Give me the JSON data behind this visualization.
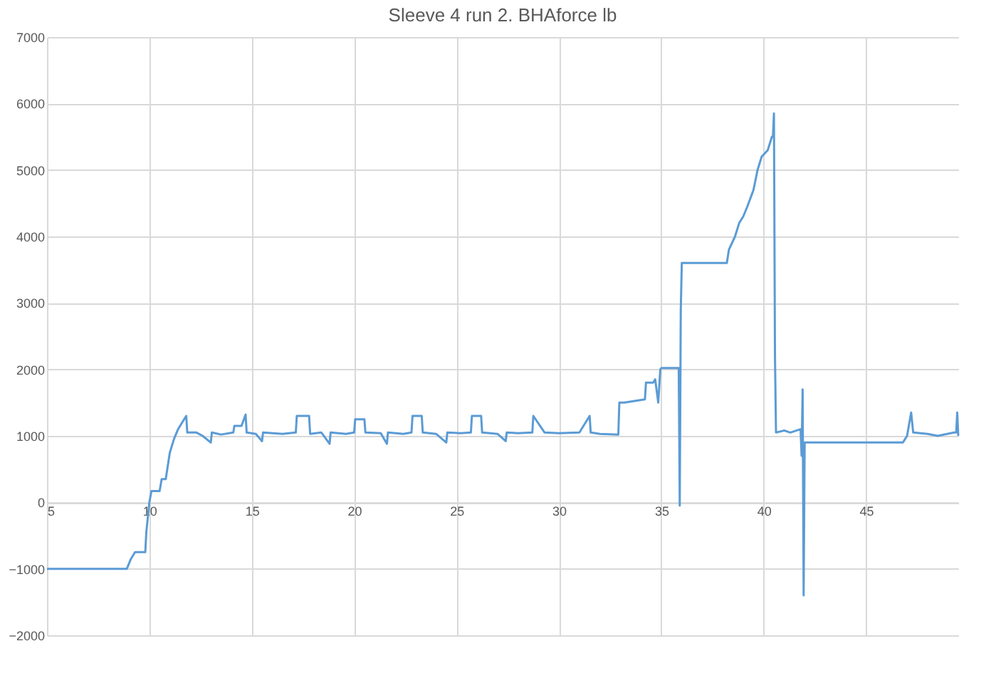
{
  "chart_data": {
    "type": "line",
    "title": "Sleeve 4 run 2. BHAforce lb",
    "x": [
      5,
      8.9,
      9.1,
      9.3,
      9.8,
      9.85,
      10.0,
      10.1,
      10.5,
      10.6,
      10.8,
      11.0,
      11.2,
      11.4,
      11.6,
      11.8,
      11.85,
      12.3,
      12.6,
      13.0,
      13.05,
      13.5,
      14.1,
      14.15,
      14.5,
      14.7,
      14.75,
      15.2,
      15.5,
      15.55,
      16.5,
      17.15,
      17.2,
      17.8,
      17.85,
      18.4,
      18.8,
      18.85,
      19.6,
      20.0,
      20.05,
      20.5,
      20.55,
      21.3,
      21.6,
      21.65,
      22.4,
      22.8,
      22.85,
      23.3,
      23.35,
      24.0,
      24.5,
      24.55,
      25.2,
      25.7,
      25.75,
      26.2,
      26.25,
      27.0,
      27.4,
      27.45,
      28.0,
      28.7,
      28.75,
      29.3,
      30.0,
      31.0,
      31.5,
      31.55,
      32.0,
      32.9,
      32.95,
      33.2,
      34.2,
      34.25,
      34.6,
      34.7,
      34.85,
      34.95,
      35.0,
      35.5,
      35.85,
      35.9,
      35.95,
      36.0,
      36.05,
      37.0,
      38.2,
      38.3,
      38.6,
      38.8,
      39.0,
      39.2,
      39.5,
      39.7,
      39.9,
      40.2,
      40.4,
      40.45,
      40.5,
      40.55,
      40.6,
      41.0,
      41.3,
      41.8,
      41.85,
      41.9,
      41.95,
      42.0,
      42.1,
      44.0,
      46.8,
      47.0,
      47.2,
      47.3,
      48.0,
      48.5,
      49.3,
      49.4,
      49.45,
      49.5
    ],
    "series": [
      {
        "color": "#5b9bd5",
        "values": [
          -1000,
          -1000,
          -850,
          -750,
          -750,
          -450,
          0,
          170,
          170,
          350,
          350,
          750,
          950,
          1100,
          1200,
          1300,
          1050,
          1050,
          1000,
          900,
          1050,
          1020,
          1050,
          1150,
          1150,
          1320,
          1050,
          1030,
          920,
          1050,
          1030,
          1050,
          1300,
          1300,
          1030,
          1050,
          880,
          1050,
          1030,
          1050,
          1250,
          1250,
          1050,
          1040,
          880,
          1050,
          1030,
          1050,
          1300,
          1300,
          1050,
          1030,
          900,
          1050,
          1040,
          1050,
          1300,
          1300,
          1050,
          1030,
          920,
          1050,
          1040,
          1050,
          1300,
          1050,
          1040,
          1050,
          1300,
          1050,
          1030,
          1020,
          1500,
          1500,
          1550,
          1800,
          1800,
          1850,
          1500,
          2000,
          2020,
          2020,
          2020,
          -50,
          2900,
          3600,
          3600,
          3600,
          3600,
          3800,
          4000,
          4200,
          4300,
          4450,
          4700,
          5000,
          5200,
          5300,
          5500,
          5500,
          5850,
          2200,
          1050,
          1080,
          1050,
          1100,
          700,
          1700,
          -1400,
          900,
          900,
          900,
          900,
          1000,
          1350,
          1050,
          1030,
          1000,
          1050,
          1050,
          1350,
          1000
        ]
      }
    ],
    "xlim": [
      5,
      49.5
    ],
    "xticks": [
      5,
      10,
      15,
      20,
      25,
      30,
      35,
      40,
      45
    ],
    "ylim": [
      -2000,
      7000
    ],
    "yticks": [
      -2000,
      -1000,
      0,
      1000,
      2000,
      3000,
      4000,
      5000,
      6000,
      7000
    ],
    "grid": true,
    "marker": "none",
    "line_style": "solid"
  }
}
